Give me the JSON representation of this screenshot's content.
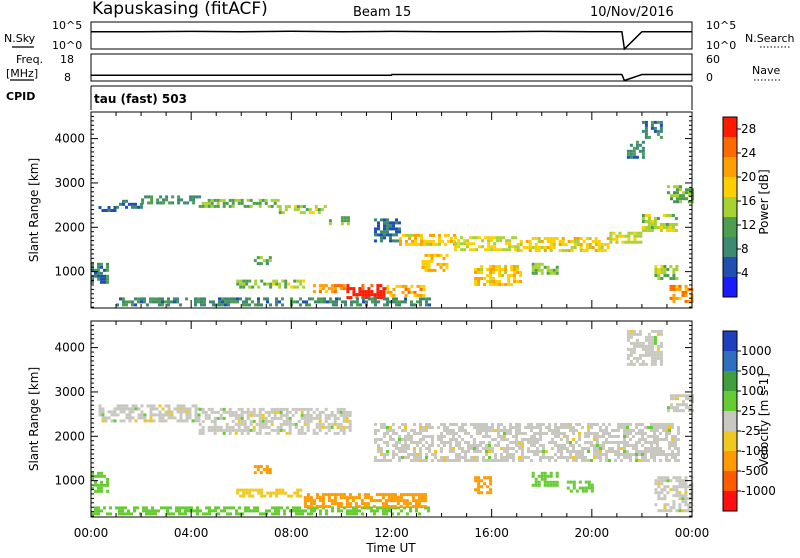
{
  "header": {
    "station": "Kapuskasing (fitACF)",
    "beam": "Beam 15",
    "date": "10/Nov/2016"
  },
  "side_labels": {
    "nsky": "N.Sky",
    "freq_line1": "Freq.",
    "freq_line2": "[MHz]",
    "cpid": "CPID",
    "nsearch": "N.Search",
    "nave": "Nave"
  },
  "cpid_text": "tau (fast) 503",
  "colors": {
    "trace": "#000000",
    "power_scale": [
      "#1a1aff",
      "#1f4fb0",
      "#3c8a72",
      "#4f9e4f",
      "#a6d233",
      "#ffcf00",
      "#ff9f00",
      "#ff6a00",
      "#ff1a00"
    ],
    "velocity_scale": [
      "#1f3fbf",
      "#2f6fc0",
      "#3f9f3f",
      "#66cc33",
      "#c8c8c0",
      "#f0c820",
      "#ff9a00",
      "#ff5a00",
      "#ff1010"
    ]
  },
  "chart_data": [
    {
      "type": "line",
      "panel": "N.Sky / N.Search",
      "left_ticks": [
        "10^5",
        "10^0"
      ],
      "right_ticks": [
        "10^5",
        "10^0"
      ],
      "series": [
        {
          "name": "N.Sky",
          "x": [
            0,
            2,
            4,
            6,
            8,
            10,
            12,
            14,
            16,
            18,
            20,
            21.2,
            21.3,
            22,
            24
          ],
          "values": [
            3.2,
            3.2,
            3.25,
            3.2,
            3.3,
            3.2,
            3.25,
            3.2,
            3.2,
            3.25,
            3.2,
            3.2,
            0,
            3.2,
            3.2
          ]
        }
      ]
    },
    {
      "type": "line",
      "panel": "Frequency / Nave",
      "left_label": "Freq. [MHz]",
      "left_ticks": [
        "18",
        "8"
      ],
      "right_ticks": [
        "60",
        "0"
      ],
      "ylim": [
        8,
        18
      ],
      "series": [
        {
          "name": "Freq.",
          "x": [
            0,
            2,
            4,
            6,
            8,
            10,
            12,
            12.01,
            16,
            20,
            21.2,
            21.3,
            22,
            24
          ],
          "values": [
            10.1,
            10.1,
            10.1,
            10.1,
            10.1,
            10.1,
            10.1,
            10.4,
            10.4,
            10.4,
            10.4,
            8.2,
            10.4,
            10.4
          ]
        }
      ]
    },
    {
      "type": "heatmap",
      "panel": "Power",
      "xlabel": "Time UT",
      "ylabel": "Slant Range [km]",
      "xlim": [
        0,
        24
      ],
      "ylim": [
        180,
        4600
      ],
      "x_ticks": [
        "00:00",
        "04:00",
        "08:00",
        "12:00",
        "16:00",
        "20:00",
        "00:00"
      ],
      "y_ticks": [
        1000,
        2000,
        3000,
        4000
      ],
      "colorbar": {
        "label": "Power [dB]",
        "ticks": [
          4,
          8,
          12,
          16,
          20,
          24,
          28
        ],
        "range": [
          0,
          30
        ]
      },
      "regions": [
        {
          "t0": 0.3,
          "t1": 1.0,
          "r0": 2350,
          "r1": 2480,
          "value": 6
        },
        {
          "t0": 1.0,
          "t1": 2.0,
          "r0": 2480,
          "r1": 2620,
          "value": 7
        },
        {
          "t0": 2.0,
          "t1": 4.3,
          "r0": 2550,
          "r1": 2720,
          "value": 10
        },
        {
          "t0": 4.3,
          "t1": 7.5,
          "r0": 2450,
          "r1": 2640,
          "value": 13
        },
        {
          "t0": 7.5,
          "t1": 9.5,
          "r0": 2300,
          "r1": 2500,
          "value": 15
        },
        {
          "t0": 9.5,
          "t1": 10.3,
          "r0": 2050,
          "r1": 2250,
          "value": 12
        },
        {
          "t0": 6.5,
          "t1": 7.2,
          "r0": 1150,
          "r1": 1350,
          "value": 12
        },
        {
          "t0": 5.8,
          "t1": 8.5,
          "r0": 620,
          "r1": 820,
          "value": 14
        },
        {
          "t0": 8.5,
          "t1": 10.2,
          "r0": 520,
          "r1": 720,
          "value": 22
        },
        {
          "t0": 10.2,
          "t1": 11.8,
          "r0": 420,
          "r1": 720,
          "value": 29
        },
        {
          "t0": 11.8,
          "t1": 13.3,
          "r0": 470,
          "r1": 700,
          "value": 21
        },
        {
          "t0": 0.0,
          "t1": 0.7,
          "r0": 780,
          "r1": 1200,
          "value": 8
        },
        {
          "t0": 1.0,
          "t1": 13.5,
          "r0": 220,
          "r1": 420,
          "value": 9
        },
        {
          "t0": 11.3,
          "t1": 12.3,
          "r0": 1700,
          "r1": 2200,
          "value": 7
        },
        {
          "t0": 12.3,
          "t1": 14.5,
          "r0": 1600,
          "r1": 1850,
          "value": 19
        },
        {
          "t0": 14.5,
          "t1": 17.0,
          "r0": 1500,
          "r1": 1800,
          "value": 17
        },
        {
          "t0": 17.0,
          "t1": 20.7,
          "r0": 1450,
          "r1": 1780,
          "value": 18
        },
        {
          "t0": 20.7,
          "t1": 22.0,
          "r0": 1650,
          "r1": 1900,
          "value": 16
        },
        {
          "t0": 22.0,
          "t1": 23.4,
          "r0": 1950,
          "r1": 2300,
          "value": 15
        },
        {
          "t0": 23.0,
          "t1": 24.0,
          "r0": 2600,
          "r1": 2950,
          "value": 12
        },
        {
          "t0": 13.2,
          "t1": 14.2,
          "r0": 1000,
          "r1": 1400,
          "value": 20
        },
        {
          "t0": 15.3,
          "t1": 17.2,
          "r0": 700,
          "r1": 1150,
          "value": 19
        },
        {
          "t0": 17.6,
          "t1": 18.6,
          "r0": 950,
          "r1": 1200,
          "value": 14
        },
        {
          "t0": 22.5,
          "t1": 23.4,
          "r0": 850,
          "r1": 1150,
          "value": 14
        },
        {
          "t0": 23.1,
          "t1": 24.0,
          "r0": 300,
          "r1": 700,
          "value": 22
        },
        {
          "t0": 21.4,
          "t1": 22.0,
          "r0": 3600,
          "r1": 3950,
          "value": 9
        },
        {
          "t0": 22.0,
          "t1": 22.8,
          "r0": 4050,
          "r1": 4400,
          "value": 8
        }
      ]
    },
    {
      "type": "heatmap",
      "panel": "Velocity",
      "xlabel": "Time UT",
      "ylabel": "Slant Range [km]",
      "xlim": [
        0,
        24
      ],
      "ylim": [
        180,
        4600
      ],
      "x_ticks": [
        "00:00",
        "04:00",
        "08:00",
        "12:00",
        "16:00",
        "20:00",
        "00:00"
      ],
      "y_ticks": [
        1000,
        2000,
        3000,
        4000
      ],
      "colorbar": {
        "label": "Velocity [m s-1]",
        "ticks": [
          "1000",
          "500",
          "100",
          "25",
          "-25",
          "-100",
          "-500",
          "-1000"
        ]
      },
      "regions": [
        {
          "t0": 0.3,
          "t1": 4.3,
          "r0": 2350,
          "r1": 2720,
          "value": 0
        },
        {
          "t0": 4.3,
          "t1": 10.3,
          "r0": 2050,
          "r1": 2640,
          "value": 0
        },
        {
          "t0": 11.3,
          "t1": 23.4,
          "r0": 1450,
          "r1": 2300,
          "value": 0
        },
        {
          "t0": 23.0,
          "t1": 24.0,
          "r0": 2600,
          "r1": 2950,
          "value": 0
        },
        {
          "t0": 21.4,
          "t1": 22.8,
          "r0": 3600,
          "r1": 4400,
          "value": 0
        },
        {
          "t0": 0.0,
          "t1": 13.5,
          "r0": 220,
          "r1": 420,
          "value": 60
        },
        {
          "t0": 6.5,
          "t1": 7.2,
          "r0": 1150,
          "r1": 1350,
          "value": -300
        },
        {
          "t0": 5.8,
          "t1": 8.5,
          "r0": 620,
          "r1": 820,
          "value": -80
        },
        {
          "t0": 8.5,
          "t1": 13.3,
          "r0": 420,
          "r1": 720,
          "value": -150
        },
        {
          "t0": 15.3,
          "t1": 16.0,
          "r0": 700,
          "r1": 1100,
          "value": -300
        },
        {
          "t0": 17.6,
          "t1": 18.6,
          "r0": 900,
          "r1": 1200,
          "value": 70
        },
        {
          "t0": 19.0,
          "t1": 20.0,
          "r0": 750,
          "r1": 1000,
          "value": 60
        },
        {
          "t0": 22.5,
          "t1": 24.0,
          "r0": 300,
          "r1": 1100,
          "value": 0
        },
        {
          "t0": 0.0,
          "t1": 0.6,
          "r0": 780,
          "r1": 1200,
          "value": 70
        }
      ]
    }
  ],
  "footer": {
    "xlabel": "Time UT"
  }
}
